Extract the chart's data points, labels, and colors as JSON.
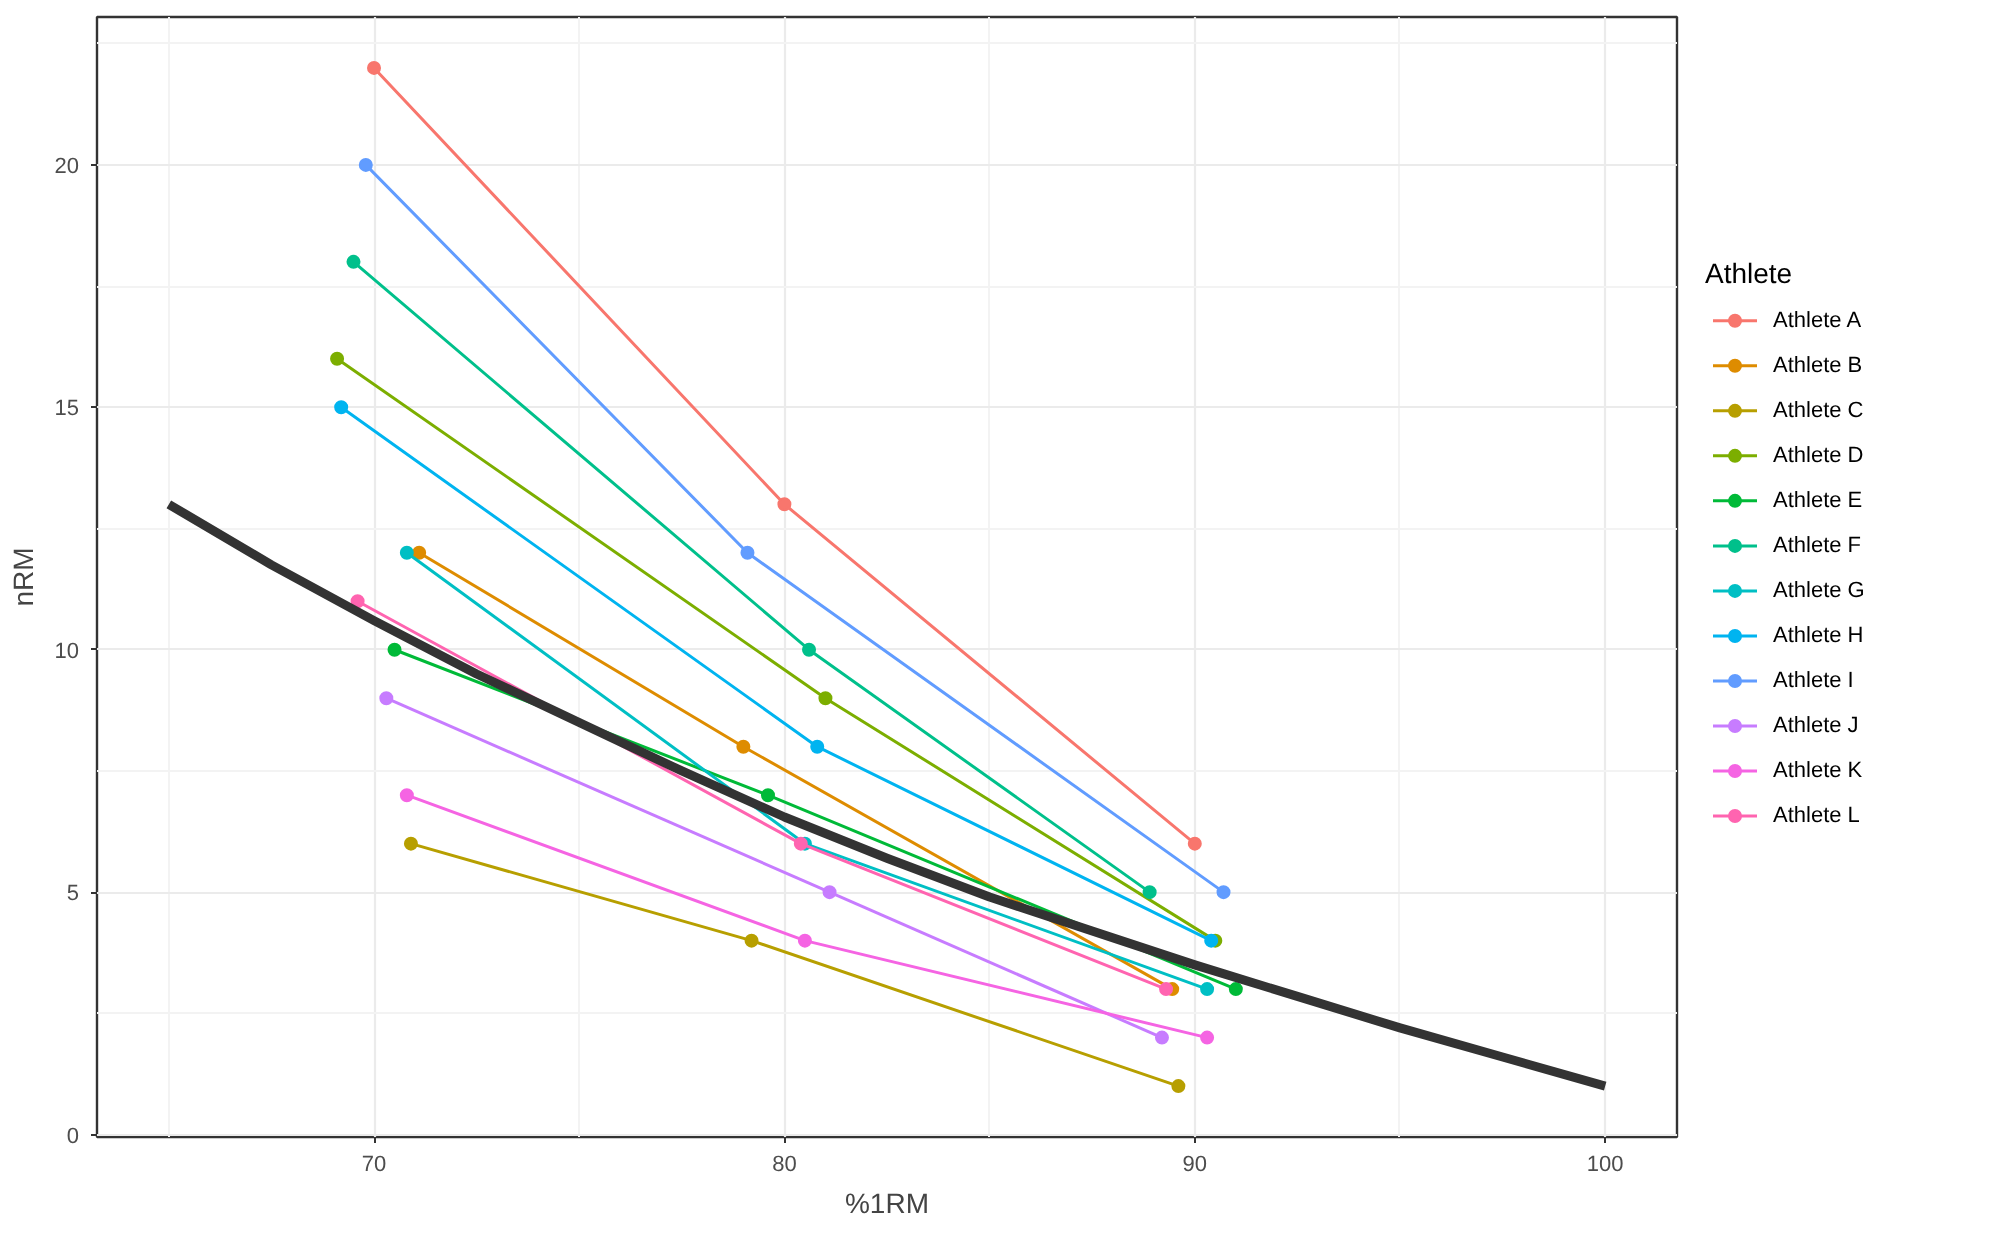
{
  "chart_data": {
    "type": "line",
    "xlabel": "%1RM",
    "ylabel": "nRM",
    "legend_title": "Athlete",
    "legend": "right",
    "grid": true,
    "marker": "circle",
    "xlim": [
      63.25,
      101.75
    ],
    "xticks": [
      70,
      80,
      90,
      100
    ],
    "ylim": [
      -0.05,
      23.05
    ],
    "yticks": [
      0,
      5,
      10,
      15,
      20
    ],
    "series": [
      {
        "name": "Athlete A",
        "color": "#f8766d",
        "x": [
          70.0,
          80.0,
          90.0
        ],
        "values": [
          22,
          13,
          6
        ]
      },
      {
        "name": "Athlete B",
        "color": "#de8c00",
        "x": [
          71.1,
          79.0,
          89.45
        ],
        "values": [
          12,
          8,
          3
        ]
      },
      {
        "name": "Athlete C",
        "color": "#b79f00",
        "x": [
          70.9,
          79.2,
          89.6
        ],
        "values": [
          6,
          4,
          1
        ]
      },
      {
        "name": "Athlete D",
        "color": "#7cae00",
        "x": [
          69.1,
          81.0,
          90.5
        ],
        "values": [
          16,
          9,
          4
        ]
      },
      {
        "name": "Athlete E",
        "color": "#00ba38",
        "x": [
          70.5,
          79.6,
          91.0
        ],
        "values": [
          10,
          7,
          3
        ]
      },
      {
        "name": "Athlete F",
        "color": "#00c08b",
        "x": [
          69.5,
          80.6,
          88.9
        ],
        "values": [
          18,
          10,
          5
        ]
      },
      {
        "name": "Athlete G",
        "color": "#00bfc4",
        "x": [
          70.8,
          80.5,
          90.3
        ],
        "values": [
          12,
          6,
          3
        ]
      },
      {
        "name": "Athlete H",
        "color": "#00b4f0",
        "x": [
          69.2,
          80.8,
          90.4
        ],
        "values": [
          15,
          8,
          4
        ]
      },
      {
        "name": "Athlete I",
        "color": "#619cff",
        "x": [
          69.8,
          79.1,
          90.7
        ],
        "values": [
          20,
          12,
          5
        ]
      },
      {
        "name": "Athlete J",
        "color": "#c77cff",
        "x": [
          70.3,
          81.1,
          89.2
        ],
        "values": [
          9,
          5,
          2
        ]
      },
      {
        "name": "Athlete K",
        "color": "#f564e3",
        "x": [
          70.8,
          80.5,
          90.3
        ],
        "values": [
          7,
          4,
          2
        ]
      },
      {
        "name": "Athlete L",
        "color": "#ff64b0",
        "x": [
          69.6,
          80.4,
          89.3
        ],
        "values": [
          11,
          6,
          3
        ]
      },
      {
        "color": "#333333",
        "marker": "none",
        "x": [
          65,
          67.5,
          70,
          72.5,
          75,
          77.5,
          80,
          82.5,
          85,
          87.5,
          90,
          92.5,
          95,
          97.5,
          100
        ],
        "values": [
          13,
          11.75,
          10.6,
          9.5,
          8.5,
          7.5,
          6.55,
          5.7,
          4.9,
          4.2,
          3.5,
          2.85,
          2.2,
          1.6,
          1
        ]
      }
    ]
  }
}
